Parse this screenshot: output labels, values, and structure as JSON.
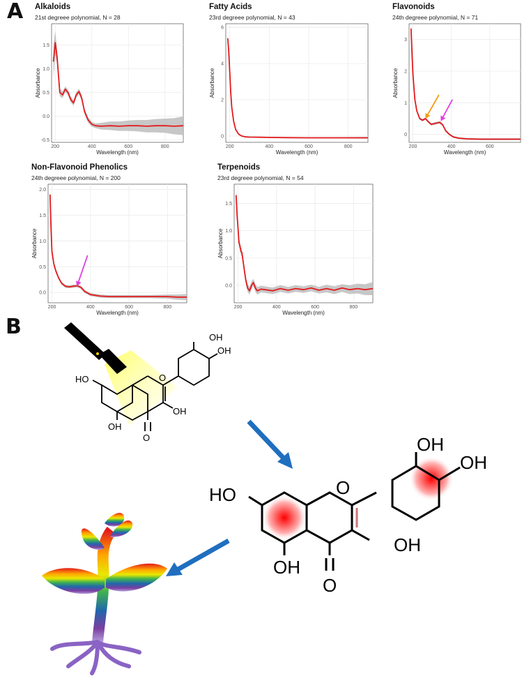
{
  "panel_labels": {
    "a": "A",
    "b": "B"
  },
  "colors": {
    "curve": "#e41a1c",
    "ribbon": "#bdbdbd",
    "panel_bg": "#ffffff",
    "grid": "#ebebeb",
    "arrow_orange": "#f39c12",
    "arrow_magenta": "#e040e0",
    "arrow_blue": "#1f6fbf"
  },
  "chart_data": [
    {
      "type": "line",
      "title": "Alkaloids",
      "subtitle": "21st degreee polynomial, N = 28",
      "xlabel": "Wavelength (nm)",
      "ylabel": "Absorbance",
      "xlim": [
        180,
        900
      ],
      "ylim": [
        -0.55,
        1.95
      ],
      "xticks": [
        200,
        400,
        600,
        800
      ],
      "yticks": [
        -0.5,
        0.0,
        0.5,
        1.0,
        1.5
      ],
      "ytick_labels": [
        "-0.5",
        "0.0",
        "0.5",
        "1.0",
        "1.5"
      ],
      "grid": true,
      "x": [
        190,
        200,
        210,
        225,
        240,
        255,
        270,
        285,
        300,
        315,
        330,
        345,
        360,
        380,
        400,
        420,
        450,
        500,
        550,
        600,
        650,
        700,
        750,
        800,
        850,
        900
      ],
      "y": [
        1.15,
        1.55,
        1.25,
        0.5,
        0.45,
        0.57,
        0.5,
        0.35,
        0.28,
        0.45,
        0.52,
        0.38,
        0.1,
        -0.08,
        -0.17,
        -0.2,
        -0.21,
        -0.2,
        -0.21,
        -0.2,
        -0.2,
        -0.21,
        -0.2,
        -0.2,
        -0.21,
        -0.2
      ],
      "band": [
        0.35,
        0.25,
        0.15,
        0.08,
        0.07,
        0.06,
        0.06,
        0.06,
        0.06,
        0.06,
        0.06,
        0.06,
        0.06,
        0.06,
        0.05,
        0.05,
        0.07,
        0.09,
        0.1,
        0.11,
        0.12,
        0.13,
        0.14,
        0.15,
        0.17,
        0.2
      ],
      "arrows": []
    },
    {
      "type": "line",
      "title": "Fatty Acids",
      "subtitle": "23rd degreee polynomial, N = 43",
      "xlabel": "Wavelength (nm)",
      "ylabel": "Absorbance",
      "xlim": [
        180,
        900
      ],
      "ylim": [
        -0.35,
        6.2
      ],
      "xticks": [
        200,
        400,
        600,
        800
      ],
      "yticks": [
        0,
        2,
        4,
        6
      ],
      "ytick_labels": [
        "0",
        "2",
        "4",
        "6"
      ],
      "grid": true,
      "x": [
        190,
        195,
        200,
        205,
        210,
        220,
        230,
        245,
        260,
        280,
        300,
        350,
        400,
        500,
        600,
        700,
        800,
        900
      ],
      "y": [
        5.4,
        4.6,
        3.5,
        2.4,
        1.6,
        0.8,
        0.35,
        0.1,
        0.0,
        -0.05,
        -0.06,
        -0.07,
        -0.08,
        -0.09,
        -0.1,
        -0.1,
        -0.1,
        -0.1
      ],
      "band": [
        0.15,
        0.12,
        0.1,
        0.08,
        0.06,
        0.05,
        0.04,
        0.03,
        0.03,
        0.03,
        0.03,
        0.03,
        0.03,
        0.03,
        0.03,
        0.03,
        0.04,
        0.05
      ],
      "arrows": []
    },
    {
      "type": "line",
      "title": "Flavonoids",
      "subtitle": "24th degreee polynomial, N = 71",
      "xlabel": "Wavelength (nm)",
      "ylabel": "Absorbance",
      "xlim": [
        180,
        760
      ],
      "ylim": [
        -0.25,
        3.5
      ],
      "xticks": [
        200,
        400,
        600
      ],
      "yticks": [
        0,
        1,
        2,
        3
      ],
      "ytick_labels": [
        "0",
        "1",
        "2",
        "3"
      ],
      "grid": true,
      "x": [
        190,
        195,
        200,
        210,
        220,
        235,
        250,
        265,
        280,
        295,
        310,
        325,
        340,
        355,
        370,
        390,
        410,
        440,
        480,
        550,
        620,
        700,
        760
      ],
      "y": [
        3.35,
        2.6,
        1.9,
        1.1,
        0.75,
        0.5,
        0.45,
        0.5,
        0.4,
        0.32,
        0.34,
        0.36,
        0.38,
        0.3,
        0.12,
        0.0,
        -0.08,
        -0.12,
        -0.14,
        -0.15,
        -0.15,
        -0.15,
        -0.15
      ],
      "band": [
        0.15,
        0.12,
        0.1,
        0.07,
        0.05,
        0.04,
        0.04,
        0.04,
        0.04,
        0.04,
        0.04,
        0.04,
        0.04,
        0.04,
        0.04,
        0.03,
        0.03,
        0.03,
        0.03,
        0.03,
        0.03,
        0.03,
        0.03
      ],
      "arrows": [
        {
          "color": "#f39c12",
          "from": [
            335,
            1.25
          ],
          "to": [
            265,
            0.5
          ]
        },
        {
          "color": "#e040e0",
          "from": [
            405,
            1.1
          ],
          "to": [
            345,
            0.42
          ]
        }
      ]
    },
    {
      "type": "line",
      "title": "Non-Flavonoid Phenolics",
      "subtitle": "24th degreee polynomial, N = 200",
      "xlabel": "Wavelength (nm)",
      "ylabel": "Absorbance",
      "xlim": [
        180,
        900
      ],
      "ylim": [
        -0.2,
        2.1
      ],
      "xticks": [
        200,
        400,
        600,
        800
      ],
      "yticks": [
        0.0,
        0.5,
        1.0,
        1.5,
        2.0
      ],
      "ytick_labels": [
        "0.0",
        "0.5",
        "1.0",
        "1.5",
        "2.0"
      ],
      "grid": true,
      "x": [
        190,
        195,
        200,
        210,
        220,
        235,
        250,
        270,
        290,
        310,
        330,
        350,
        370,
        400,
        450,
        500,
        600,
        700,
        800,
        850,
        900
      ],
      "y": [
        1.9,
        1.3,
        0.8,
        0.55,
        0.42,
        0.28,
        0.18,
        0.12,
        0.11,
        0.12,
        0.13,
        0.1,
        0.02,
        -0.04,
        -0.07,
        -0.08,
        -0.08,
        -0.08,
        -0.08,
        -0.09,
        -0.09
      ],
      "band": [
        0.1,
        0.08,
        0.06,
        0.05,
        0.04,
        0.03,
        0.03,
        0.03,
        0.03,
        0.03,
        0.03,
        0.03,
        0.03,
        0.03,
        0.03,
        0.03,
        0.03,
        0.03,
        0.04,
        0.05,
        0.06
      ],
      "arrows": [
        {
          "color": "#e040e0",
          "from": [
            385,
            0.72
          ],
          "to": [
            330,
            0.12
          ]
        }
      ]
    },
    {
      "type": "line",
      "title": "Terpenoids",
      "subtitle": "23rd degreee polynomial, N = 54",
      "xlabel": "Wavelength (nm)",
      "ylabel": "Absorbance",
      "xlim": [
        180,
        900
      ],
      "ylim": [
        -0.32,
        1.85
      ],
      "xticks": [
        200,
        400,
        600,
        800
      ],
      "yticks": [
        0.0,
        0.5,
        1.0,
        1.5
      ],
      "ytick_labels": [
        "0.0",
        "0.5",
        "1.0",
        "1.5"
      ],
      "grid": true,
      "x": [
        190,
        195,
        200,
        205,
        210,
        215,
        220,
        230,
        240,
        250,
        260,
        270,
        280,
        290,
        300,
        320,
        340,
        380,
        420,
        460,
        500,
        540,
        580,
        620,
        660,
        700,
        740,
        780,
        820,
        860,
        900
      ],
      "y": [
        1.65,
        1.3,
        1.05,
        0.78,
        0.72,
        0.62,
        0.6,
        0.35,
        0.1,
        -0.05,
        -0.1,
        0.0,
        0.05,
        -0.05,
        -0.1,
        -0.07,
        -0.08,
        -0.1,
        -0.06,
        -0.09,
        -0.06,
        -0.08,
        -0.05,
        -0.09,
        -0.06,
        -0.09,
        -0.05,
        -0.08,
        -0.06,
        -0.08,
        -0.06
      ],
      "band": [
        0.12,
        0.1,
        0.09,
        0.08,
        0.07,
        0.07,
        0.07,
        0.07,
        0.07,
        0.07,
        0.07,
        0.07,
        0.07,
        0.07,
        0.07,
        0.06,
        0.06,
        0.06,
        0.06,
        0.06,
        0.06,
        0.06,
        0.06,
        0.06,
        0.07,
        0.07,
        0.07,
        0.08,
        0.09,
        0.1,
        0.12
      ],
      "arrows": []
    }
  ],
  "schematic": {
    "small_molecule": {
      "oh_top": "OH",
      "oh_right": "OH",
      "ho_left": "HO",
      "o_ring": "O",
      "oh_c3": "OH",
      "oh_c5": "OH",
      "o_carbonyl": "O"
    },
    "large_molecule": {
      "oh_top": "OH",
      "oh_right": "OH",
      "ho_left": "HO",
      "o_ring": "O",
      "oh_c3": "OH",
      "oh_c5": "OH",
      "o_carbonyl": "O"
    },
    "icons": [
      "flashlight-icon",
      "light-beam",
      "rainbow-plant-icon",
      "blue-arrow-icon"
    ]
  }
}
